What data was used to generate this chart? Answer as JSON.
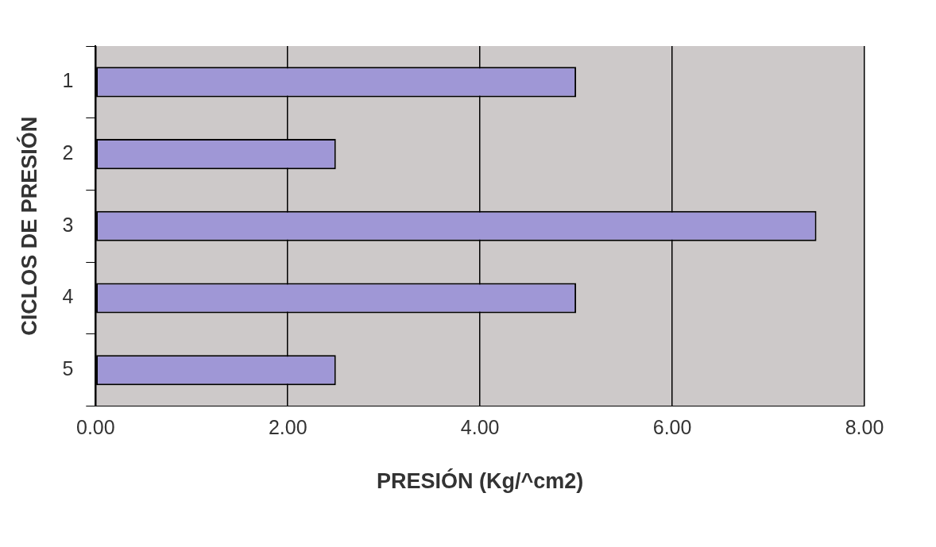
{
  "chart_data": {
    "type": "bar",
    "orientation": "horizontal",
    "xlabel": "PRESIÓN (Kg/^cm2)",
    "ylabel": "CICLOS DE PRESIÓN",
    "categories": [
      "1",
      "2",
      "3",
      "4",
      "5"
    ],
    "values": [
      5.0,
      2.5,
      7.5,
      5.0,
      2.5
    ],
    "color": "#9f97d6",
    "xlim": [
      0,
      8
    ],
    "xticks": [
      {
        "value": 0,
        "label": "0.00"
      },
      {
        "value": 2,
        "label": "2.00"
      },
      {
        "value": 4,
        "label": "4.00"
      },
      {
        "value": 6,
        "label": "6.00"
      },
      {
        "value": 8,
        "label": "8.00"
      }
    ],
    "grid": "x"
  }
}
